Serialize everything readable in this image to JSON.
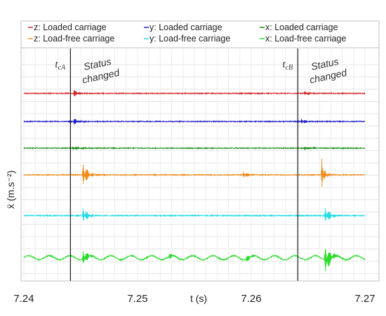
{
  "chart_data": {
    "type": "line",
    "xlabel": "t (s)",
    "ylabel": "ẍ (m.s⁻²)",
    "xlim": [
      7.24,
      7.27
    ],
    "x_ticks": [
      "7.24",
      "7.25",
      "7.26",
      "7.27"
    ],
    "grid": true,
    "legend_position": "top",
    "series": [
      {
        "name": "z: Loaded carriage",
        "color": "#d42020",
        "noise": 0.22,
        "bursts": [
          {
            "t": 7.2444,
            "amp": 1.8
          },
          {
            "t": 7.2647,
            "amp": 1.2
          }
        ],
        "waves": []
      },
      {
        "name": "y: Loaded carriage",
        "color": "#2020c8",
        "noise": 0.22,
        "bursts": [
          {
            "t": 7.2444,
            "amp": 1.8
          },
          {
            "t": 7.2644,
            "amp": 1.5
          }
        ],
        "waves": []
      },
      {
        "name": "x: Loaded carriage",
        "color": "#148c14",
        "noise": 0.2,
        "bursts": [
          {
            "t": 7.2443,
            "amp": 1.2
          },
          {
            "t": 7.2647,
            "amp": 1.0
          }
        ],
        "waves": []
      },
      {
        "name": "z: Load-free carriage",
        "color": "#f08c1e",
        "noise": 0.22,
        "bursts": [
          {
            "t": 7.2452,
            "amp": 6.5
          },
          {
            "t": 7.2593,
            "amp": 2.2
          },
          {
            "t": 7.2662,
            "amp": 9.0
          },
          {
            "t": 7.2664,
            "amp": 4.5
          }
        ],
        "waves": []
      },
      {
        "name": "y: Load-free carriage",
        "color": "#28dce6",
        "noise": 0.25,
        "bursts": [
          {
            "t": 7.2452,
            "amp": 4.0
          },
          {
            "t": 7.2665,
            "amp": 5.0
          }
        ],
        "waves": []
      },
      {
        "name": "x: Load-free carriage",
        "color": "#28dc28",
        "noise": 0.25,
        "bursts": [
          {
            "t": 7.2452,
            "amp": 4.5
          },
          {
            "t": 7.2665,
            "amp": 8.0
          },
          {
            "t": 7.2595,
            "amp": 2.0
          },
          {
            "t": 7.2528,
            "amp": 1.5
          }
        ],
        "waves": [
          {
            "period": 0.0018,
            "amp": 0.9
          }
        ]
      }
    ],
    "markers": [
      {
        "t": 7.2441,
        "label_main": "t",
        "label_sub": "cA",
        "annotation_line1": "Status",
        "annotation_line2": "changed"
      },
      {
        "t": 7.2641,
        "label_main": "t",
        "label_sub": "cB",
        "annotation_line1": "Status",
        "annotation_line2": "changed"
      }
    ]
  }
}
